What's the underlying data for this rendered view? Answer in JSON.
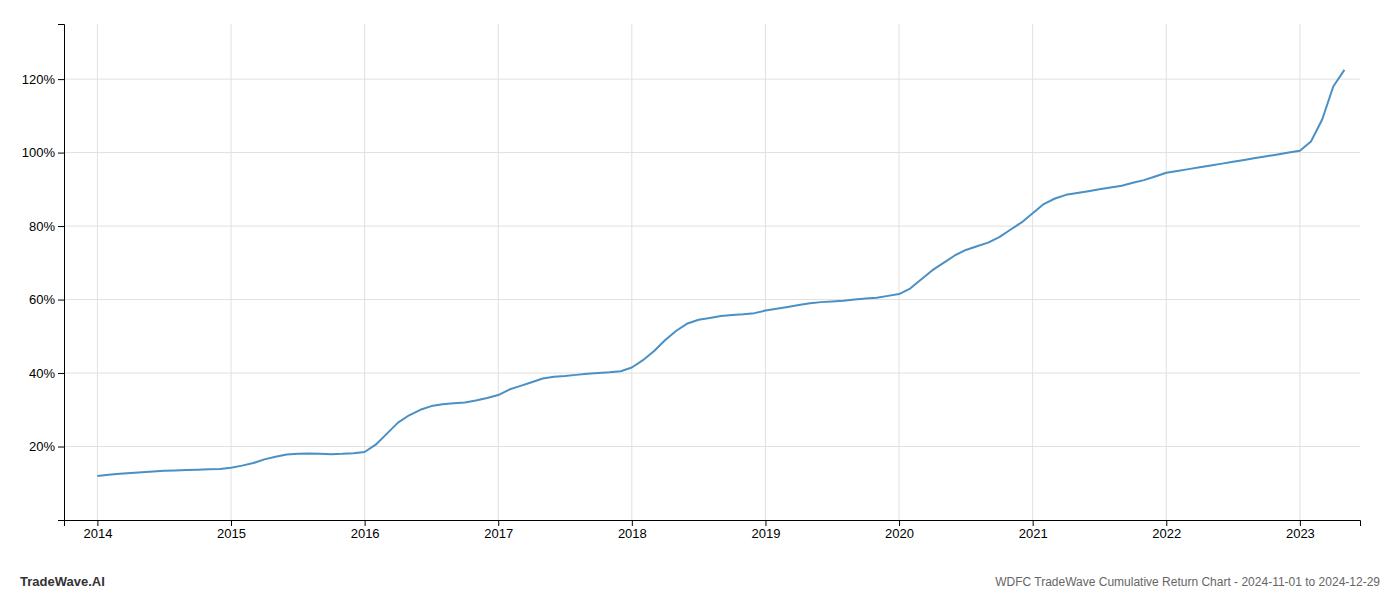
{
  "chart_data": {
    "type": "line",
    "title": "WDFC TradeWave Cumulative Return Chart - 2024-11-01 to 2024-12-29",
    "annotations": [
      "TradeWave.AI"
    ],
    "color": "#4a90c4",
    "grid": true,
    "x": [
      2014.0,
      2014.083,
      2014.167,
      2014.25,
      2014.333,
      2014.417,
      2014.5,
      2014.583,
      2014.667,
      2014.75,
      2014.833,
      2014.917,
      2015.0,
      2015.083,
      2015.167,
      2015.25,
      2015.333,
      2015.417,
      2015.5,
      2015.583,
      2015.667,
      2015.75,
      2015.833,
      2015.917,
      2016.0,
      2016.083,
      2016.167,
      2016.25,
      2016.333,
      2016.417,
      2016.5,
      2016.583,
      2016.667,
      2016.75,
      2016.833,
      2016.917,
      2017.0,
      2017.083,
      2017.167,
      2017.25,
      2017.333,
      2017.417,
      2017.5,
      2017.583,
      2017.667,
      2017.75,
      2017.833,
      2017.917,
      2018.0,
      2018.083,
      2018.167,
      2018.25,
      2018.333,
      2018.417,
      2018.5,
      2018.583,
      2018.667,
      2018.75,
      2018.833,
      2018.917,
      2019.0,
      2019.083,
      2019.167,
      2019.25,
      2019.333,
      2019.417,
      2019.5,
      2019.583,
      2019.667,
      2019.75,
      2019.833,
      2019.917,
      2020.0,
      2020.083,
      2020.167,
      2020.25,
      2020.333,
      2020.417,
      2020.5,
      2020.583,
      2020.667,
      2020.75,
      2020.833,
      2020.917,
      2021.0,
      2021.083,
      2021.167,
      2021.25,
      2021.333,
      2021.417,
      2021.5,
      2021.583,
      2021.667,
      2021.75,
      2021.833,
      2021.917,
      2022.0,
      2022.083,
      2022.167,
      2022.25,
      2022.333,
      2022.417,
      2022.5,
      2022.583,
      2022.667,
      2022.75,
      2022.833,
      2022.917,
      2023.0,
      2023.083,
      2023.167,
      2023.25,
      2023.333
    ],
    "values": [
      12.0,
      12.3,
      12.6,
      12.8,
      13.0,
      13.2,
      13.4,
      13.5,
      13.6,
      13.7,
      13.8,
      13.9,
      14.2,
      14.8,
      15.5,
      16.5,
      17.2,
      17.8,
      18.0,
      18.1,
      18.0,
      17.9,
      18.0,
      18.2,
      18.5,
      20.5,
      23.5,
      26.5,
      28.5,
      30.0,
      31.0,
      31.5,
      31.8,
      32.0,
      32.5,
      33.2,
      34.0,
      35.5,
      36.5,
      37.5,
      38.5,
      39.0,
      39.2,
      39.5,
      39.8,
      40.0,
      40.2,
      40.5,
      41.5,
      43.5,
      46.0,
      49.0,
      51.5,
      53.5,
      54.5,
      55.0,
      55.5,
      55.8,
      56.0,
      56.3,
      57.0,
      57.5,
      58.0,
      58.5,
      59.0,
      59.3,
      59.5,
      59.7,
      60.0,
      60.3,
      60.5,
      61.0,
      61.5,
      63.0,
      65.5,
      68.0,
      70.0,
      72.0,
      73.5,
      74.5,
      75.5,
      77.0,
      79.0,
      81.0,
      83.5,
      86.0,
      87.5,
      88.5,
      89.0,
      89.5,
      90.0,
      90.5,
      91.0,
      91.8,
      92.5,
      93.5,
      94.5,
      95.0,
      95.5,
      96.0,
      96.5,
      97.0,
      97.5,
      98.0,
      98.5,
      99.0,
      99.5,
      100.0,
      100.5,
      103.0,
      109.0,
      118.0,
      122.5
    ],
    "xlim": [
      2013.75,
      2023.45
    ],
    "ylim": [
      0,
      135
    ],
    "xticks": [
      2014,
      2015,
      2016,
      2017,
      2018,
      2019,
      2020,
      2021,
      2022,
      2023
    ],
    "yticks": [
      {
        "value": 20,
        "label": "20%"
      },
      {
        "value": 40,
        "label": "40%"
      },
      {
        "value": 60,
        "label": "60%"
      },
      {
        "value": 80,
        "label": "80%"
      },
      {
        "value": 100,
        "label": "100%"
      },
      {
        "value": 120,
        "label": "120%"
      }
    ]
  }
}
